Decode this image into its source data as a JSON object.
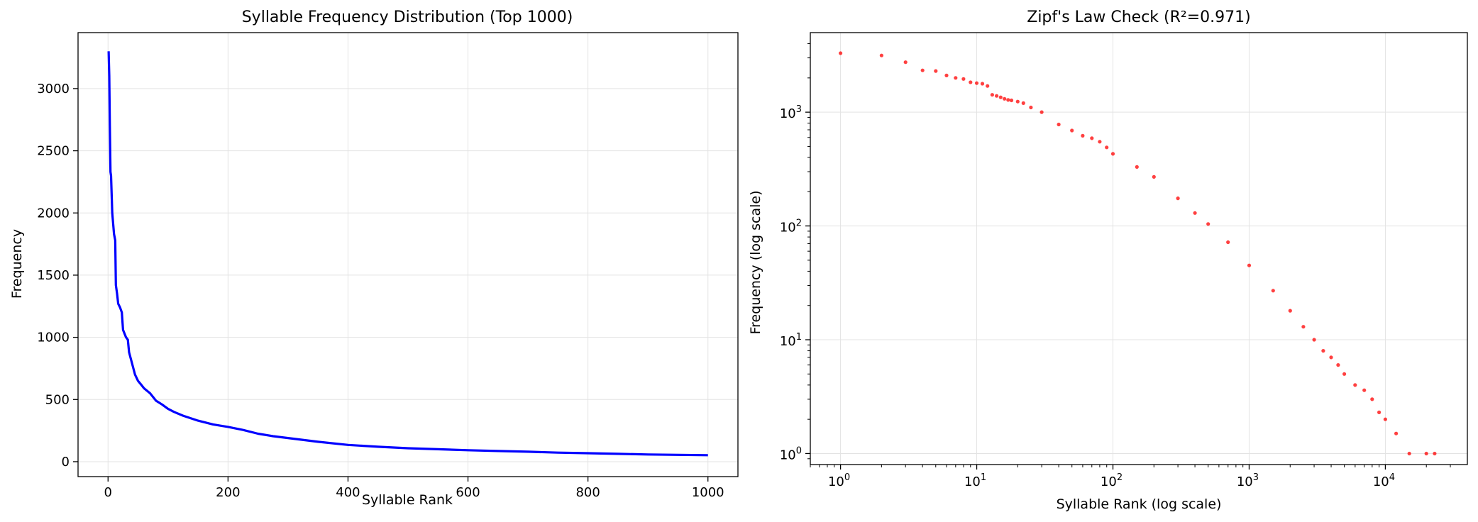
{
  "chart_data": [
    {
      "type": "line",
      "title": "Syllable Frequency Distribution (Top 1000)",
      "xlabel": "Syllable Rank",
      "ylabel": "Frequency",
      "xlim": [
        -50,
        1050
      ],
      "ylim": [
        -120,
        3450
      ],
      "xticks": [
        0,
        200,
        400,
        600,
        800,
        1000
      ],
      "yticks": [
        0,
        500,
        1000,
        1500,
        2000,
        2500,
        3000
      ],
      "grid": true,
      "color": "#0000ff",
      "series": [
        {
          "x": [
            1,
            2,
            3,
            4,
            5,
            7,
            10,
            12,
            13,
            15,
            17,
            20,
            23,
            25,
            30,
            33,
            35,
            40,
            45,
            50,
            55,
            60,
            70,
            80,
            90,
            100,
            110,
            125,
            150,
            175,
            200,
            225,
            250,
            275,
            300,
            350,
            400,
            450,
            500,
            550,
            600,
            650,
            700,
            750,
            800,
            850,
            900,
            950,
            1000
          ],
          "y": [
            3300,
            3100,
            2700,
            2330,
            2300,
            2000,
            1830,
            1780,
            1420,
            1350,
            1270,
            1240,
            1200,
            1060,
            1000,
            980,
            880,
            790,
            700,
            650,
            620,
            590,
            550,
            490,
            460,
            425,
            400,
            370,
            330,
            300,
            280,
            255,
            225,
            205,
            190,
            160,
            135,
            120,
            108,
            100,
            92,
            86,
            80,
            73,
            68,
            63,
            58,
            55,
            52
          ]
        }
      ]
    },
    {
      "type": "scatter",
      "title": "Zipf's Law Check (R²=0.971)",
      "xlabel": "Syllable Rank (log scale)",
      "ylabel": "Frequency (log scale)",
      "xscale": "log",
      "yscale": "log",
      "xlim": [
        0.6,
        40000
      ],
      "ylim": [
        0.8,
        5000
      ],
      "xticks": [
        {
          "base": "10",
          "exp": "0"
        },
        {
          "base": "10",
          "exp": "1"
        },
        {
          "base": "10",
          "exp": "2"
        },
        {
          "base": "10",
          "exp": "3"
        },
        {
          "base": "10",
          "exp": "4"
        }
      ],
      "yticks": [
        {
          "base": "10",
          "exp": "0"
        },
        {
          "base": "10",
          "exp": "1"
        },
        {
          "base": "10",
          "exp": "2"
        },
        {
          "base": "10",
          "exp": "3"
        }
      ],
      "grid": true,
      "color": "#ff0000",
      "series": [
        {
          "x": [
            1,
            2,
            3,
            4,
            5,
            6,
            7,
            8,
            9,
            10,
            11,
            12,
            13,
            14,
            15,
            16,
            17,
            18,
            20,
            22,
            25,
            30,
            40,
            50,
            60,
            70,
            80,
            90,
            100,
            150,
            200,
            300,
            400,
            500,
            700,
            1000,
            1500,
            2000,
            2500,
            3000,
            3500,
            4000,
            4500,
            5000,
            6000,
            7000,
            8000,
            9000,
            10000,
            12000,
            15000,
            20000,
            23000
          ],
          "y": [
            3300,
            3150,
            2750,
            2330,
            2300,
            2100,
            2000,
            1960,
            1830,
            1800,
            1780,
            1700,
            1420,
            1390,
            1350,
            1310,
            1280,
            1270,
            1240,
            1200,
            1100,
            1000,
            780,
            690,
            620,
            590,
            550,
            490,
            430,
            330,
            270,
            175,
            130,
            104,
            72,
            45,
            27,
            18,
            13,
            10,
            8,
            7,
            6,
            5,
            4,
            3.6,
            3,
            2.3,
            2,
            1.5,
            1,
            1,
            1
          ]
        }
      ]
    }
  ]
}
